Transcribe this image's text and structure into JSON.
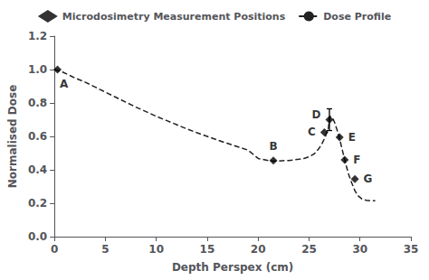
{
  "chart_data": {
    "type": "line",
    "xlabel": "Depth Perspex (cm)",
    "ylabel": "Normalised Dose",
    "xlim": [
      0,
      35
    ],
    "ylim": [
      0.0,
      1.2
    ],
    "xticks": [
      0,
      5,
      10,
      15,
      20,
      25,
      30,
      35
    ],
    "yticks": [
      {
        "value": 0.0,
        "label": "0.0"
      },
      0.2,
      0.4,
      0.6,
      0.8,
      {
        "value": 1.0,
        "label": "1.0"
      },
      1.2
    ],
    "grid": false,
    "legend": "upper center",
    "series": [
      {
        "name": "Microdosimetry Measurement Positions",
        "type": "scatter",
        "marker": "diamond",
        "color": "#000000",
        "x": [
          0.3,
          21.5,
          26.5,
          27.0,
          28.0,
          28.5,
          29.5
        ],
        "values": [
          1.0,
          0.455,
          0.625,
          0.7,
          0.595,
          0.46,
          0.345
        ],
        "labels": [
          "A",
          "B",
          "C",
          "D",
          "E",
          "F",
          "G"
        ],
        "yerr": [
          null,
          null,
          null,
          0.065,
          null,
          null,
          null
        ]
      },
      {
        "name": "Dose Profile",
        "type": "line",
        "line_style": "dashed",
        "color": "#222222",
        "x": [
          0,
          0.3,
          0.8,
          1.5,
          2,
          3,
          4,
          5,
          6,
          7,
          8,
          9,
          10,
          11,
          12,
          13,
          14,
          15,
          16,
          17,
          18,
          19,
          20,
          21,
          21.5,
          22,
          23,
          24,
          24.5,
          25,
          25.5,
          26,
          26.3,
          26.6,
          26.9,
          27.0,
          27.1,
          27.3,
          27.5,
          27.8,
          28.0,
          28.3,
          28.6,
          28.9,
          29.2,
          29.5,
          29.8,
          30.2,
          30.6,
          31.0,
          31.5
        ],
        "values": [
          1.0,
          0.995,
          0.985,
          0.965,
          0.95,
          0.925,
          0.895,
          0.865,
          0.835,
          0.805,
          0.775,
          0.748,
          0.72,
          0.695,
          0.67,
          0.645,
          0.622,
          0.6,
          0.578,
          0.558,
          0.538,
          0.518,
          0.468,
          0.455,
          0.452,
          0.453,
          0.456,
          0.463,
          0.468,
          0.478,
          0.495,
          0.53,
          0.56,
          0.598,
          0.65,
          0.7,
          0.72,
          0.71,
          0.685,
          0.63,
          0.585,
          0.51,
          0.435,
          0.37,
          0.32,
          0.275,
          0.245,
          0.225,
          0.218,
          0.215,
          0.215
        ]
      }
    ]
  }
}
